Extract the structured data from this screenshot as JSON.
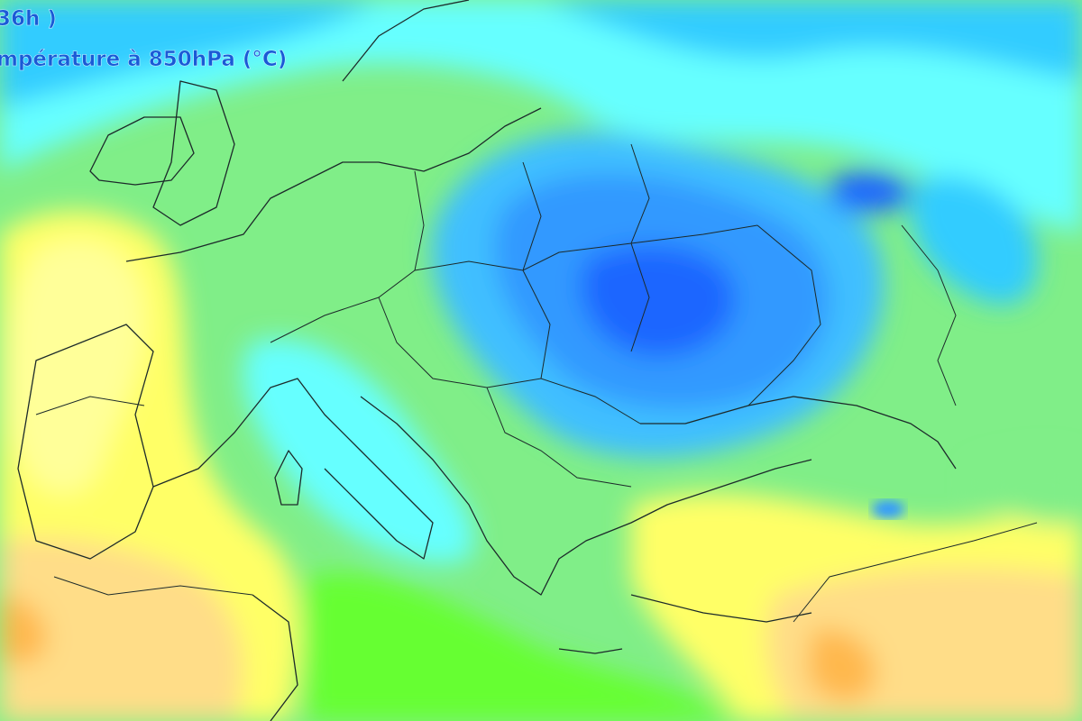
{
  "header": {
    "line1": "36h )",
    "line2": "mpérature à 850hPa (°C)"
  }
}
